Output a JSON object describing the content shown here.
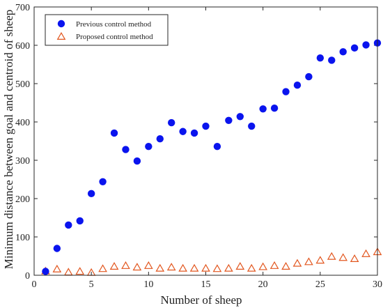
{
  "chart_data": {
    "type": "scatter",
    "title": "",
    "xlabel": "Number of sheep",
    "ylabel": "Minimum distance between goal and centroid of sheep",
    "xlim": [
      0,
      30
    ],
    "ylim": [
      0,
      700
    ],
    "xticks": [
      "0",
      "5",
      "10",
      "15",
      "20",
      "25",
      "30"
    ],
    "yticks": [
      "0",
      "100",
      "200",
      "300",
      "400",
      "500",
      "600",
      "700"
    ],
    "grid": false,
    "legend_position": "top-left",
    "x": [
      1,
      2,
      3,
      4,
      5,
      6,
      7,
      8,
      9,
      10,
      11,
      12,
      13,
      14,
      15,
      16,
      17,
      18,
      19,
      20,
      21,
      22,
      23,
      24,
      25,
      26,
      27,
      28,
      29,
      30
    ],
    "series": [
      {
        "name": "Previous control method",
        "marker": "filled-circle",
        "color": "#0a14ee",
        "values": [
          10,
          70,
          131,
          142,
          213,
          244,
          371,
          328,
          298,
          336,
          356,
          398,
          375,
          371,
          389,
          336,
          404,
          414,
          389,
          434,
          436,
          479,
          496,
          518,
          567,
          561,
          583,
          593,
          601,
          606
        ]
      },
      {
        "name": "Proposed control method",
        "marker": "open-triangle",
        "color": "#e2561e",
        "values": [
          10,
          15,
          7,
          9,
          6,
          16,
          22,
          24,
          20,
          24,
          17,
          20,
          17,
          17,
          17,
          16,
          17,
          22,
          17,
          21,
          24,
          22,
          30,
          34,
          38,
          48,
          45,
          42,
          55,
          60
        ]
      }
    ]
  }
}
